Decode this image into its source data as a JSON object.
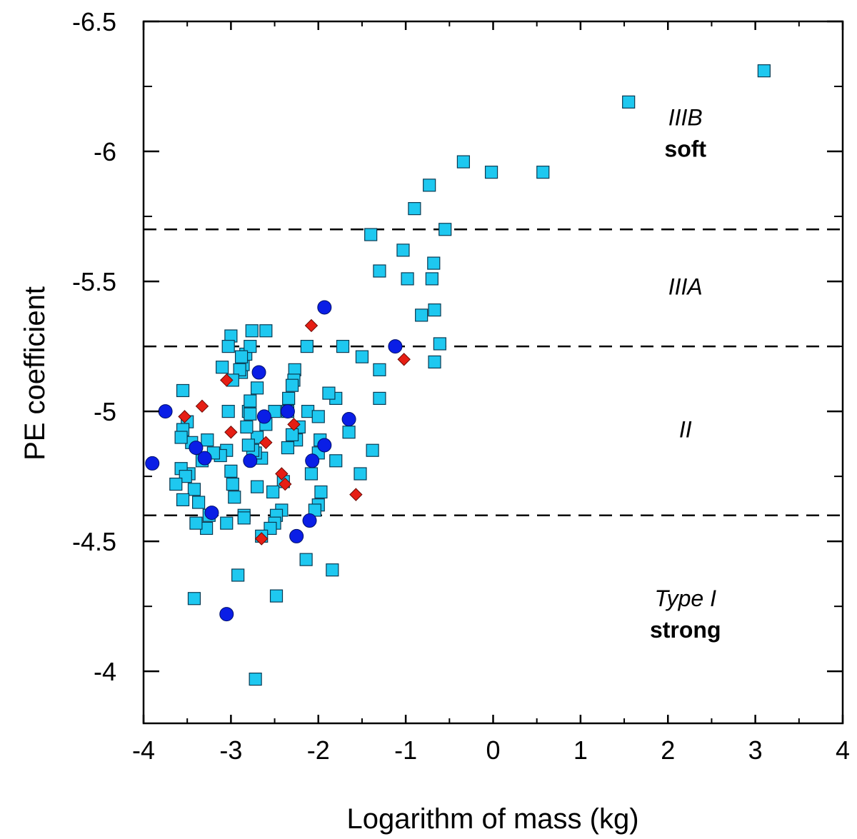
{
  "chart_data": {
    "type": "scatter",
    "title": "",
    "xlabel": "Logarithm of mass (kg)",
    "ylabel": "PE coefficient",
    "xlim": [
      -4,
      4
    ],
    "ylim": [
      -3.8,
      -6.5
    ],
    "y_inverted": true,
    "grid": false,
    "x_ticks": [
      "-4",
      "-3",
      "-2",
      "-1",
      "0",
      "1",
      "2",
      "3",
      "4"
    ],
    "y_ticks": [
      "-6.5",
      "-6",
      "-5.5",
      "-5",
      "-4.5",
      "-4"
    ],
    "thresholds": [
      -5.7,
      -5.25,
      -4.6
    ],
    "region_labels": [
      {
        "lines": [
          {
            "text": "IIIB",
            "style": "italic"
          },
          {
            "text": "soft",
            "style": "bold"
          }
        ],
        "x": 2.2,
        "y": -6.1
      },
      {
        "lines": [
          {
            "text": "IIIA",
            "style": "italic"
          }
        ],
        "x": 2.2,
        "y": -5.45
      },
      {
        "lines": [
          {
            "text": "II",
            "style": "italic"
          }
        ],
        "x": 2.2,
        "y": -4.9
      },
      {
        "lines": [
          {
            "text": "Type I",
            "style": "italic"
          },
          {
            "text": "strong",
            "style": "bold"
          }
        ],
        "x": 2.2,
        "y": -4.25
      }
    ],
    "series": [
      {
        "name": "squares",
        "marker": "square",
        "color": "#1ec8f0",
        "points": [
          [
            3.1,
            -6.31
          ],
          [
            1.55,
            -6.19
          ],
          [
            0.57,
            -5.92
          ],
          [
            -0.02,
            -5.92
          ],
          [
            -0.34,
            -5.96
          ],
          [
            -0.73,
            -5.87
          ],
          [
            -0.9,
            -5.78
          ],
          [
            -0.55,
            -5.7
          ],
          [
            -1.4,
            -5.68
          ],
          [
            -1.03,
            -5.62
          ],
          [
            -0.68,
            -5.57
          ],
          [
            -1.3,
            -5.54
          ],
          [
            -0.98,
            -5.51
          ],
          [
            -0.7,
            -5.51
          ],
          [
            -0.82,
            -5.37
          ],
          [
            -0.67,
            -5.39
          ],
          [
            -0.61,
            -5.26
          ],
          [
            -0.67,
            -5.19
          ],
          [
            -1.5,
            -5.21
          ],
          [
            -1.3,
            -5.16
          ],
          [
            -1.3,
            -5.05
          ],
          [
            -1.72,
            -5.25
          ],
          [
            -1.65,
            -4.92
          ],
          [
            -1.38,
            -4.85
          ],
          [
            -1.52,
            -4.76
          ],
          [
            -1.8,
            -4.81
          ],
          [
            -1.84,
            -4.39
          ],
          [
            -2.14,
            -4.43
          ],
          [
            -1.97,
            -4.69
          ],
          [
            -2.0,
            -4.64
          ],
          [
            -2.04,
            -4.62
          ],
          [
            -2.08,
            -4.76
          ],
          [
            -2.0,
            -4.84
          ],
          [
            -1.98,
            -4.89
          ],
          [
            -1.8,
            -5.05
          ],
          [
            -1.88,
            -5.07
          ],
          [
            -2.13,
            -5.25
          ],
          [
            -2.12,
            -5.0
          ],
          [
            -2.0,
            -4.98
          ],
          [
            -2.22,
            -4.94
          ],
          [
            -2.25,
            -4.89
          ],
          [
            -2.27,
            -5.16
          ],
          [
            -2.28,
            -5.12
          ],
          [
            -2.3,
            -5.1
          ],
          [
            -2.34,
            -5.05
          ],
          [
            -2.35,
            -5.0
          ],
          [
            -2.3,
            -4.91
          ],
          [
            -2.35,
            -4.86
          ],
          [
            -2.4,
            -4.73
          ],
          [
            -2.42,
            -4.62
          ],
          [
            -2.48,
            -4.6
          ],
          [
            -2.5,
            -4.57
          ],
          [
            -2.55,
            -4.55
          ],
          [
            -2.52,
            -4.69
          ],
          [
            -2.5,
            -5.0
          ],
          [
            -2.6,
            -4.95
          ],
          [
            -2.65,
            -4.82
          ],
          [
            -2.7,
            -4.71
          ],
          [
            -2.7,
            -4.9
          ],
          [
            -2.72,
            -4.84
          ],
          [
            -2.75,
            -4.85
          ],
          [
            -2.8,
            -4.87
          ],
          [
            -2.82,
            -4.94
          ],
          [
            -2.8,
            -5.0
          ],
          [
            -2.78,
            -5.04
          ],
          [
            -2.88,
            -5.15
          ],
          [
            -2.86,
            -5.18
          ],
          [
            -2.83,
            -5.22
          ],
          [
            -2.9,
            -5.16
          ],
          [
            -2.78,
            -5.25
          ],
          [
            -2.88,
            -5.21
          ],
          [
            -2.76,
            -5.31
          ],
          [
            -2.6,
            -5.31
          ],
          [
            -2.7,
            -5.09
          ],
          [
            -2.78,
            -4.99
          ],
          [
            -2.85,
            -4.6
          ],
          [
            -2.85,
            -4.59
          ],
          [
            -2.65,
            -4.52
          ],
          [
            -3.0,
            -5.29
          ],
          [
            -3.03,
            -5.25
          ],
          [
            -3.1,
            -5.17
          ],
          [
            -2.98,
            -5.12
          ],
          [
            -3.03,
            -5.0
          ],
          [
            -3.05,
            -4.85
          ],
          [
            -3.0,
            -4.77
          ],
          [
            -2.98,
            -4.72
          ],
          [
            -2.96,
            -4.67
          ],
          [
            -3.05,
            -4.57
          ],
          [
            -3.12,
            -4.83
          ],
          [
            -3.2,
            -4.84
          ],
          [
            -3.25,
            -4.6
          ],
          [
            -3.28,
            -4.55
          ],
          [
            -3.27,
            -4.89
          ],
          [
            -3.33,
            -4.81
          ],
          [
            -3.37,
            -4.65
          ],
          [
            -3.4,
            -4.57
          ],
          [
            -3.42,
            -4.7
          ],
          [
            -3.45,
            -4.88
          ],
          [
            -3.48,
            -4.76
          ],
          [
            -3.5,
            -4.96
          ],
          [
            -3.55,
            -4.93
          ],
          [
            -3.57,
            -4.9
          ],
          [
            -3.57,
            -4.78
          ],
          [
            -3.52,
            -4.75
          ],
          [
            -3.55,
            -4.66
          ],
          [
            -3.63,
            -4.72
          ],
          [
            -3.55,
            -5.08
          ],
          [
            -3.42,
            -4.28
          ],
          [
            -2.92,
            -4.37
          ],
          [
            -2.48,
            -4.29
          ],
          [
            -2.72,
            -3.97
          ]
        ]
      },
      {
        "name": "circles",
        "marker": "circle",
        "color": "#0a1ee6",
        "points": [
          [
            -3.9,
            -4.8
          ],
          [
            -3.75,
            -5.0
          ],
          [
            -3.4,
            -4.86
          ],
          [
            -3.3,
            -4.82
          ],
          [
            -3.22,
            -4.61
          ],
          [
            -3.05,
            -4.22
          ],
          [
            -2.78,
            -4.81
          ],
          [
            -2.68,
            -5.15
          ],
          [
            -2.62,
            -4.98
          ],
          [
            -2.35,
            -5.0
          ],
          [
            -2.25,
            -4.52
          ],
          [
            -2.1,
            -4.58
          ],
          [
            -2.07,
            -4.81
          ],
          [
            -1.93,
            -4.87
          ],
          [
            -1.93,
            -5.4
          ],
          [
            -1.65,
            -4.97
          ],
          [
            -1.12,
            -5.25
          ]
        ]
      },
      {
        "name": "diamonds",
        "marker": "diamond",
        "color": "#e61e14",
        "points": [
          [
            -3.53,
            -4.98
          ],
          [
            -3.33,
            -5.02
          ],
          [
            -3.05,
            -5.12
          ],
          [
            -3.0,
            -4.92
          ],
          [
            -2.6,
            -4.88
          ],
          [
            -2.65,
            -4.51
          ],
          [
            -2.42,
            -4.76
          ],
          [
            -2.38,
            -4.72
          ],
          [
            -2.28,
            -4.95
          ],
          [
            -2.08,
            -5.33
          ],
          [
            -1.57,
            -4.68
          ],
          [
            -1.02,
            -5.2
          ]
        ]
      }
    ]
  }
}
